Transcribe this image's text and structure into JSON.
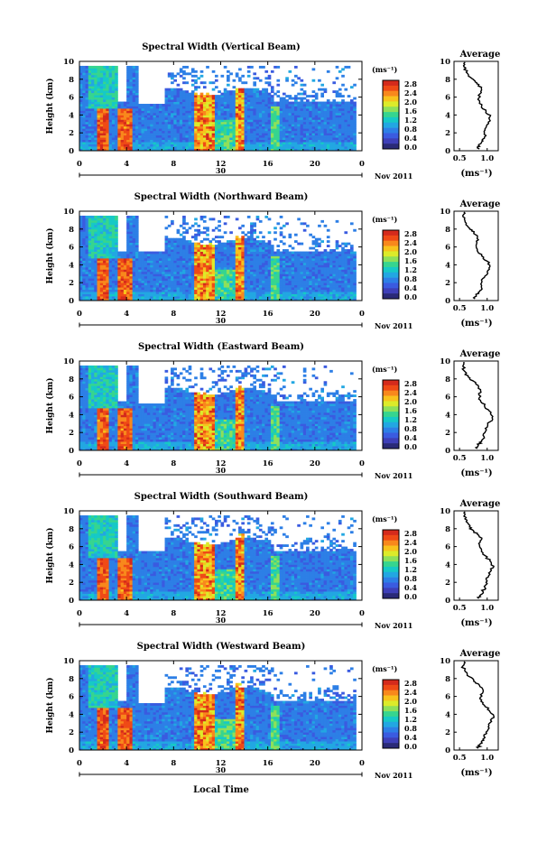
{
  "chart_data": {
    "type": "heatmap",
    "colorbar": {
      "unit": "(ms⁻¹)",
      "ticks": [
        "2.8",
        "2.4",
        "2.0",
        "1.6",
        "1.2",
        "0.8",
        "0.4",
        "0.0"
      ],
      "colors": [
        "#d42a1c",
        "#ef4a16",
        "#f8881c",
        "#f8c21c",
        "#dceb2a",
        "#8ee05a",
        "#36d58f",
        "#16c9c6",
        "#22a7e2",
        "#2d7fe6",
        "#3a5be0",
        "#3e3fb8",
        "#2a2a78"
      ]
    },
    "x_ticks": [
      "0",
      "4",
      "8",
      "12",
      "16",
      "20",
      "0"
    ],
    "y_ticks": [
      "0",
      "2",
      "4",
      "6",
      "8",
      "10"
    ],
    "xlim": [
      0,
      24
    ],
    "ylim": [
      0,
      10
    ],
    "ylabel": "Height (km)",
    "date_center": "30",
    "date_right": "Nov 2011",
    "xlabel_bottom": "Local Time",
    "avg_title": "Average",
    "avg_unit": "(ms⁻¹)",
    "panels": [
      {
        "title": "Spectral Width (Vertical Beam)",
        "avg_xticks": [
          "0.5",
          "1.0"
        ],
        "avg_profile": [
          [
            0.86,
            0.2
          ],
          [
            0.84,
            0.6
          ],
          [
            0.9,
            1.0
          ],
          [
            0.95,
            1.4
          ],
          [
            0.95,
            2.0
          ],
          [
            0.98,
            2.6
          ],
          [
            1.02,
            3.2
          ],
          [
            1.05,
            3.8
          ],
          [
            0.98,
            4.4
          ],
          [
            0.9,
            5.0
          ],
          [
            0.86,
            5.6
          ],
          [
            0.84,
            6.2
          ],
          [
            0.9,
            6.8
          ],
          [
            0.85,
            7.4
          ],
          [
            0.78,
            7.8
          ],
          [
            0.7,
            8.2
          ],
          [
            0.62,
            8.8
          ],
          [
            0.58,
            9.4
          ],
          [
            0.6,
            9.9
          ]
        ]
      },
      {
        "title": "Spectral Width (Northward Beam)",
        "avg_xticks": [
          "0.5",
          "1.0"
        ],
        "avg_profile": [
          [
            0.78,
            0.2
          ],
          [
            0.8,
            0.6
          ],
          [
            0.86,
            1.0
          ],
          [
            0.9,
            1.4
          ],
          [
            0.9,
            2.0
          ],
          [
            0.95,
            2.6
          ],
          [
            1.0,
            3.2
          ],
          [
            1.05,
            3.8
          ],
          [
            1.0,
            4.4
          ],
          [
            0.9,
            5.0
          ],
          [
            0.82,
            5.6
          ],
          [
            0.8,
            6.2
          ],
          [
            0.84,
            6.8
          ],
          [
            0.78,
            7.4
          ],
          [
            0.72,
            7.8
          ],
          [
            0.66,
            8.2
          ],
          [
            0.6,
            8.8
          ],
          [
            0.56,
            9.4
          ],
          [
            0.58,
            9.9
          ]
        ]
      },
      {
        "title": "Spectral Width (Eastward Beam)",
        "avg_xticks": [
          "0.5",
          "1.0"
        ],
        "avg_profile": [
          [
            0.82,
            0.2
          ],
          [
            0.84,
            0.6
          ],
          [
            0.9,
            1.0
          ],
          [
            0.95,
            1.4
          ],
          [
            0.96,
            2.0
          ],
          [
            1.0,
            2.6
          ],
          [
            1.05,
            3.2
          ],
          [
            1.1,
            3.8
          ],
          [
            1.04,
            4.4
          ],
          [
            0.95,
            5.0
          ],
          [
            0.88,
            5.6
          ],
          [
            0.85,
            6.2
          ],
          [
            0.88,
            6.8
          ],
          [
            0.8,
            7.4
          ],
          [
            0.74,
            7.8
          ],
          [
            0.66,
            8.2
          ],
          [
            0.6,
            8.8
          ],
          [
            0.56,
            9.4
          ],
          [
            0.58,
            9.9
          ]
        ]
      },
      {
        "title": "Spectral Width (Southward Beam)",
        "avg_xticks": [
          "0.5",
          "1.0"
        ],
        "avg_profile": [
          [
            0.85,
            0.2
          ],
          [
            0.88,
            0.6
          ],
          [
            0.92,
            1.0
          ],
          [
            0.96,
            1.4
          ],
          [
            0.98,
            2.0
          ],
          [
            1.02,
            2.6
          ],
          [
            1.06,
            3.2
          ],
          [
            1.12,
            3.8
          ],
          [
            1.05,
            4.4
          ],
          [
            0.96,
            5.0
          ],
          [
            0.9,
            5.6
          ],
          [
            0.86,
            6.2
          ],
          [
            0.9,
            6.8
          ],
          [
            0.82,
            7.4
          ],
          [
            0.75,
            7.8
          ],
          [
            0.68,
            8.2
          ],
          [
            0.62,
            8.8
          ],
          [
            0.58,
            9.4
          ],
          [
            0.6,
            9.9
          ]
        ]
      },
      {
        "title": "Spectral Width (Westward Beam)",
        "avg_xticks": [
          "0.5",
          "1.0"
        ],
        "avg_profile": [
          [
            0.84,
            0.2
          ],
          [
            0.86,
            0.6
          ],
          [
            0.9,
            1.0
          ],
          [
            0.96,
            1.4
          ],
          [
            0.98,
            2.0
          ],
          [
            1.02,
            2.6
          ],
          [
            1.08,
            3.2
          ],
          [
            1.12,
            3.8
          ],
          [
            1.04,
            4.4
          ],
          [
            0.95,
            5.0
          ],
          [
            0.9,
            5.6
          ],
          [
            0.88,
            6.2
          ],
          [
            0.92,
            6.8
          ],
          [
            0.84,
            7.4
          ],
          [
            0.76,
            7.8
          ],
          [
            0.68,
            8.2
          ],
          [
            0.6,
            8.8
          ],
          [
            0.56,
            9.4
          ],
          [
            0.58,
            9.9
          ]
        ]
      }
    ]
  }
}
